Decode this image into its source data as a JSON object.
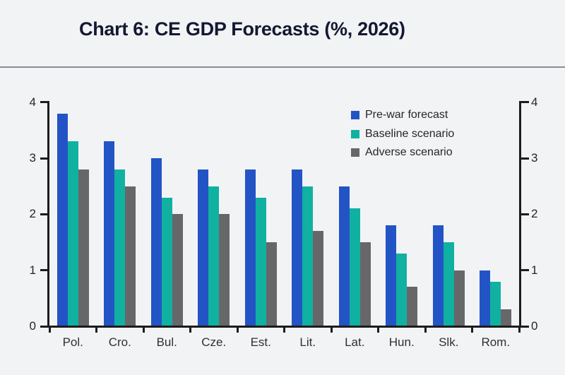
{
  "header": {
    "title": "Chart 6: CE GDP Forecasts (%, 2026)"
  },
  "chart_data": {
    "type": "bar",
    "title": "Chart 6: CE GDP Forecasts (%, 2026)",
    "categories": [
      "Pol.",
      "Cro.",
      "Bul.",
      "Cze.",
      "Est.",
      "Lit.",
      "Lat.",
      "Hun.",
      "Slk.",
      "Rom."
    ],
    "series": [
      {
        "name": "Pre-war forecast",
        "color": "#2254c6",
        "values": [
          3.8,
          3.3,
          3.0,
          2.8,
          2.8,
          2.8,
          2.5,
          1.8,
          1.8,
          1.0
        ]
      },
      {
        "name": "Baseline scenario",
        "color": "#10b1a1",
        "values": [
          3.3,
          2.8,
          2.3,
          2.5,
          2.3,
          2.5,
          2.1,
          1.3,
          1.5,
          0.8
        ]
      },
      {
        "name": "Adverse scenario",
        "color": "#67676a",
        "values": [
          2.8,
          2.5,
          2.0,
          2.0,
          1.5,
          1.7,
          1.5,
          0.7,
          1.0,
          0.3
        ]
      }
    ],
    "xlabel": "",
    "ylabel": "",
    "ylim": [
      0,
      4
    ],
    "yticks": [
      0,
      1,
      2,
      3,
      4
    ],
    "dual_y_axis_labels": true,
    "legend_position": "top-right",
    "grid": false
  },
  "style": {
    "background": "#f2f3f5",
    "axis_color": "#1c1c1c",
    "tick_label_color": "#262626",
    "category_label_color": "#303030",
    "legend_text_color": "#262626",
    "title_color": "#141830",
    "divider_color": "#8b8b96"
  }
}
